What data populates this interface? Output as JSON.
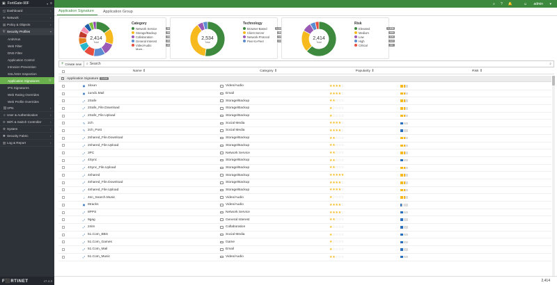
{
  "app": {
    "hostname": "FortiGate-90F",
    "logo": "F⬛RTINET",
    "version": "v7.4.3"
  },
  "topbar": {
    "items": [
      "⌕",
      "?",
      "🔔",
      "admin"
    ]
  },
  "sidebar": {
    "items": [
      {
        "label": "Dashboard",
        "icon": "dashboard-icon",
        "glyph": "◱",
        "has_children": true,
        "open": false
      },
      {
        "label": "Network",
        "icon": "network-icon",
        "glyph": "✣",
        "has_children": true,
        "open": false
      },
      {
        "label": "Policy & Objects",
        "icon": "policy-icon",
        "glyph": "▤",
        "has_children": true,
        "open": false
      },
      {
        "label": "Security Profiles",
        "icon": "shield-icon",
        "glyph": "⛨",
        "has_children": true,
        "open": true
      }
    ],
    "sub_items": [
      {
        "label": "AntiVirus",
        "active": false
      },
      {
        "label": "Web Filter",
        "active": false
      },
      {
        "label": "DNS Filter",
        "active": false
      },
      {
        "label": "Application Control",
        "active": false
      },
      {
        "label": "Intrusion Prevention",
        "active": false
      },
      {
        "label": "SSL/SSH Inspection",
        "active": false
      },
      {
        "label": "Application Signatures",
        "active": true
      },
      {
        "label": "IPS Signatures",
        "active": false
      },
      {
        "label": "Web Rating Overrides",
        "active": false
      },
      {
        "label": "Web Profile Overrides",
        "active": false
      }
    ],
    "items_after": [
      {
        "label": "VPN",
        "icon": "vpn-icon",
        "glyph": "⛓"
      },
      {
        "label": "User & Authentication",
        "icon": "user-icon",
        "glyph": "☺"
      },
      {
        "label": "WiFi & Switch Controller",
        "icon": "wifi-icon",
        "glyph": "≋"
      },
      {
        "label": "System",
        "icon": "gear-icon",
        "glyph": "⚙"
      },
      {
        "label": "Security Fabric",
        "icon": "fabric-icon",
        "glyph": "✱"
      },
      {
        "label": "Log & Report",
        "icon": "log-icon",
        "glyph": "▥"
      }
    ]
  },
  "tabs": [
    {
      "label": "Application Signature",
      "active": true
    },
    {
      "label": "Application Group",
      "active": false
    }
  ],
  "widgets": [
    {
      "title": "Category",
      "total": "2,414",
      "total_label": "Total",
      "slices": [
        {
          "value": 367,
          "color": "#3d8a3e"
        },
        {
          "value": 362,
          "color": "#f6b91e"
        },
        {
          "value": 268,
          "color": "#9b59b6"
        },
        {
          "value": 264,
          "color": "#5b8bd0"
        },
        {
          "value": 242,
          "color": "#e74c3c"
        },
        {
          "value": 180,
          "color": "#2ab7c9"
        },
        {
          "value": 160,
          "color": "#e67e22"
        },
        {
          "value": 150,
          "color": "#c0392b"
        },
        {
          "value": 130,
          "color": "#f78fb3"
        },
        {
          "value": 120,
          "color": "#1f5fa8"
        },
        {
          "value": 100,
          "color": "#7fbf3f"
        },
        {
          "value": 71,
          "color": "#8e44ad"
        }
      ],
      "legend": [
        {
          "name": "Network Service",
          "count": "367",
          "color": "#3d8a3e"
        },
        {
          "name": "Storage/Backup",
          "count": "362",
          "color": "#f6b91e"
        },
        {
          "name": "Collaboration",
          "count": "268",
          "color": "#9b59b6"
        },
        {
          "name": "General Interest",
          "count": "264",
          "color": "#5b8bd0"
        },
        {
          "name": "Video/Audio",
          "count": "242",
          "color": "#e74c3c"
        }
      ],
      "more": "More..."
    },
    {
      "title": "Technology",
      "total": "2,534",
      "total_label": "Total",
      "slices": [
        {
          "value": 1324,
          "color": "#3d8a3e"
        },
        {
          "value": 962,
          "color": "#f6b91e"
        },
        {
          "value": 140,
          "color": "#9b59b6"
        },
        {
          "value": 108,
          "color": "#5b8bd0"
        }
      ],
      "legend": [
        {
          "name": "Browser-Based",
          "count": "1,324",
          "color": "#3d8a3e"
        },
        {
          "name": "Client-Server",
          "count": "962",
          "color": "#f6b91e"
        },
        {
          "name": "Network-Protocol",
          "count": "140",
          "color": "#9b59b6"
        },
        {
          "name": "Peer-to-Peer",
          "count": "108",
          "color": "#5b8bd0"
        }
      ]
    },
    {
      "title": "Risk",
      "total": "2,414",
      "total_label": "Total",
      "slices": [
        {
          "value": 1508,
          "color": "#3d8a3e"
        },
        {
          "value": 496,
          "color": "#f6b91e"
        },
        {
          "value": 206,
          "color": "#9b59b6"
        },
        {
          "value": 122,
          "color": "#5b8bd0"
        },
        {
          "value": 82,
          "color": "#e74c3c"
        }
      ],
      "legend": [
        {
          "name": "Elevated",
          "count": "1,508",
          "color": "#3d8a3e"
        },
        {
          "name": "Medium",
          "count": "496",
          "color": "#f6b91e"
        },
        {
          "name": "Low",
          "count": "206",
          "color": "#9b59b6"
        },
        {
          "name": "High",
          "count": "122",
          "color": "#5b8bd0"
        },
        {
          "name": "Critical",
          "count": "82",
          "color": "#e74c3c"
        }
      ]
    }
  ],
  "toolbar": {
    "create_label": "Create new",
    "search_placeholder": "Search"
  },
  "table": {
    "headers": {
      "name": "Name ⇕",
      "category": "Category ⇕",
      "popularity": "Popularity ⇕",
      "risk": "Risk ⇕"
    },
    "group_label": "Application Signature",
    "group_count": "2,414",
    "rows": [
      {
        "name": "1kxun",
        "icon": "▣",
        "category": "Video/Audio",
        "popularity": 4,
        "risk": 3
      },
      {
        "name": "1und1.Mail",
        "icon": "▣",
        "category": "Email",
        "popularity": 4,
        "risk": 3
      },
      {
        "name": "2Safe",
        "icon": "⤢",
        "category": "Storage/Backup",
        "popularity": 2,
        "risk": 3
      },
      {
        "name": "2Safe_File.Download",
        "icon": "⤢",
        "category": "Storage/Backup",
        "popularity": 1,
        "risk": 3
      },
      {
        "name": "2Safe_File.Upload",
        "icon": "⤢",
        "category": "Storage/Backup",
        "popularity": 1,
        "risk": 3
      },
      {
        "name": "2ch",
        "icon": "✎",
        "category": "Social Media",
        "popularity": 4,
        "risk": 2
      },
      {
        "name": "2ch_Post",
        "icon": "✎",
        "category": "Social Media",
        "popularity": 4,
        "risk": 2
      },
      {
        "name": "2shared_File.Download",
        "icon": "⤢",
        "category": "Storage/Backup",
        "popularity": 2,
        "risk": 3
      },
      {
        "name": "2shared_File.Upload",
        "icon": "⤢",
        "category": "Storage/Backup",
        "popularity": 2,
        "risk": 3
      },
      {
        "name": "3PC",
        "icon": "⤢",
        "category": "Network Service",
        "popularity": 2,
        "risk": 3
      },
      {
        "name": "4Sync",
        "icon": "⤢",
        "category": "Storage/Backup",
        "popularity": 2,
        "risk": 2
      },
      {
        "name": "4Sync_File.Upload",
        "icon": "⤢",
        "category": "Storage/Backup",
        "popularity": 2,
        "risk": 3
      },
      {
        "name": "4shared",
        "icon": "⤢",
        "category": "Storage/Backup",
        "popularity": 5,
        "risk": 3
      },
      {
        "name": "4shared_File.Download",
        "icon": "⤢",
        "category": "Storage/Backup",
        "popularity": 4,
        "risk": 3
      },
      {
        "name": "4shared_File.Upload",
        "icon": "⤢",
        "category": "Storage/Backup",
        "popularity": 4,
        "risk": 3
      },
      {
        "name": "4sn_Search.Music",
        "icon": "♪",
        "category": "Video/Audio",
        "popularity": 1,
        "risk": 3
      },
      {
        "name": "8tracks",
        "icon": "▣",
        "category": "Video/Audio",
        "popularity": 4,
        "risk": 1
      },
      {
        "name": "8PPS",
        "icon": "⤢",
        "category": "Network Service",
        "popularity": 4,
        "risk": 2
      },
      {
        "name": "9gag",
        "icon": "⤢",
        "category": "General Interest",
        "popularity": 2,
        "risk": 2
      },
      {
        "name": "24im",
        "icon": "⤢",
        "category": "Collaboration",
        "popularity": 1,
        "risk": 2
      },
      {
        "name": "51.Com_BBS",
        "icon": "⤢",
        "category": "Social Media",
        "popularity": 1,
        "risk": 2
      },
      {
        "name": "51.Com_Games",
        "icon": "⤢",
        "category": "Game",
        "popularity": 1,
        "risk": 2
      },
      {
        "name": "51.Com_Mail",
        "icon": "⤢",
        "category": "Email",
        "popularity": 1,
        "risk": 2
      },
      {
        "name": "51.Com_Music",
        "icon": "⤢",
        "category": "Video/Audio",
        "popularity": 2,
        "risk": 2
      }
    ]
  },
  "footer": {
    "count": "2,414"
  }
}
